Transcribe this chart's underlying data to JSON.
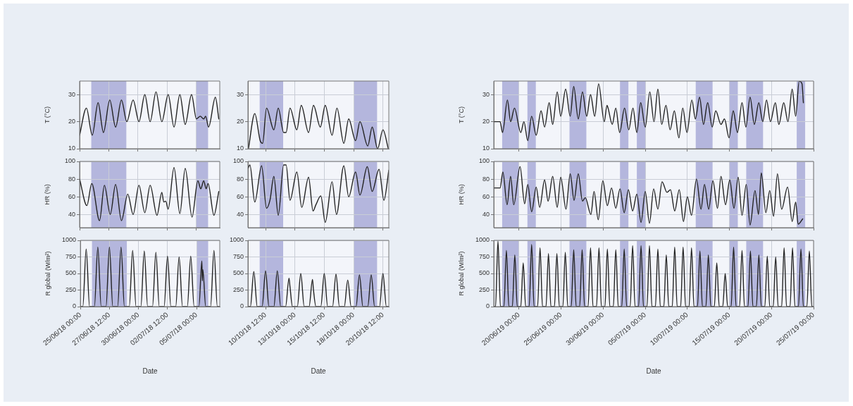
{
  "chart_data": [
    {
      "type": "line",
      "ylabel": "T (°C)",
      "color": "#222222",
      "marker": "none",
      "grid": true,
      "tick_labels": "y",
      "x": [
        "--06-25T00:00",
        "--06-25T14:00",
        "--06-26T02:00",
        "--06-26T14:00",
        "--06-27T01:00",
        "--06-27T14:00",
        "--06-28T02:00",
        "--06-28T14:00",
        "--06-29T01:00",
        "--06-29T14:00",
        "--06-30T02:00",
        "--06-30T14:00",
        "--07-01T01:00",
        "--07-01T13:00",
        "--07-02T01:00",
        "--07-02T14:00",
        "--07-03T02:00",
        "--07-03T14:00",
        "--07-04T01:00",
        "--07-04T14:00",
        "--07-05T00:00",
        "--07-05T08:00",
        "--07-05T15:00",
        "--07-05T19:00",
        "--07-06T01:00",
        "--07-06T15:00",
        "--07-06T22:00"
      ],
      "values": [
        15,
        25,
        15,
        27,
        16,
        28,
        18,
        28,
        20,
        28,
        20,
        30,
        20,
        31,
        20,
        30,
        18,
        30,
        19,
        30,
        21,
        22,
        21,
        22,
        18,
        29,
        21
      ],
      "xlim": [
        "--06-25T00:00",
        "--07-07T00:00"
      ],
      "xticks": [
        {
          "value": "--06-25T00:00",
          "label": null
        },
        {
          "value": "--06-27T12:00",
          "label": null
        },
        {
          "value": "--06-30T00:00",
          "label": null
        },
        {
          "value": "--07-02T12:00",
          "label": null
        },
        {
          "value": "--07-05T00:00",
          "label": null
        }
      ],
      "ylim": [
        10,
        35
      ],
      "yticks": [
        10,
        20,
        30
      ],
      "bands": [
        {
          "axis": "x",
          "from": "--06-26T00:00",
          "to": "--06-29T00:00",
          "color": "#b4b6dd"
        },
        {
          "axis": "x",
          "from": "--07-05T00:00",
          "to": "--07-06T00:00",
          "color": "#b4b6dd"
        }
      ]
    },
    {
      "type": "line",
      "color": "#222222",
      "marker": "none",
      "grid": true,
      "tick_labels": "y",
      "x": [
        "--10-09T01:00",
        "--10-09T14:00",
        "--10-10T01:00",
        "--10-10T06:00",
        "--10-10T14:00",
        "--10-11T05:00",
        "--10-11T14:00",
        "--10-12T01:00",
        "--10-12T06:00",
        "--10-12T14:00",
        "--10-13T04:00",
        "--10-13T13:00",
        "--10-14T04:00",
        "--10-14T14:00",
        "--10-15T04:00",
        "--10-15T14:00",
        "--10-16T04:00",
        "--10-16T14:00",
        "--10-17T04:00",
        "--10-17T14:00",
        "--10-18T04:00",
        "--10-18T13:00",
        "--10-19T05:00",
        "--10-19T14:00",
        "--10-20T01:00",
        "--10-20T12:00",
        "--10-20T23:00"
      ],
      "values": [
        10,
        23,
        13,
        12,
        25,
        17,
        25,
        16,
        16,
        25,
        17,
        26,
        16,
        26,
        18,
        26,
        15,
        25,
        12,
        21,
        13,
        20,
        11,
        18,
        10,
        17,
        10
      ],
      "xlim": [
        "--10-09T00:00",
        "--10-21T00:00"
      ],
      "xticks": [
        {
          "value": "--10-10T12:00",
          "label": null
        },
        {
          "value": "--10-13T00:00",
          "label": null
        },
        {
          "value": "--10-15T12:00",
          "label": null
        },
        {
          "value": "--10-18T00:00",
          "label": null
        },
        {
          "value": "--10-20T12:00",
          "label": null
        }
      ],
      "ylim": [
        10,
        35
      ],
      "yticks": [
        10,
        20,
        30
      ],
      "bands": [
        {
          "axis": "x",
          "from": "--10-10T00:00",
          "to": "--10-12T00:00",
          "color": "#b4b6dd"
        },
        {
          "axis": "x",
          "from": "--10-18T00:00",
          "to": "--10-20T00:00",
          "color": "#b4b6dd"
        }
      ]
    },
    {
      "type": "line",
      "ylabel": "T (°C)",
      "color": "#222222",
      "marker": "none",
      "grid": true,
      "tick_labels": "y",
      "x": [
        "--06-17T00:00",
        "--06-17T18:00",
        "--06-18T01:00",
        "--06-18T15:00",
        "--06-19T00:00",
        "--06-19T11:00",
        "--06-20T05:00",
        "--06-20T14:00",
        "--06-21T01:00",
        "--06-21T12:00",
        "--06-22T01:00",
        "--06-22T15:00",
        "--06-23T01:00",
        "--06-23T14:00",
        "--06-24T00:00",
        "--06-24T13:00",
        "--06-24T23:00",
        "--06-25T13:00",
        "--06-26T02:00",
        "--06-26T12:00",
        "--06-27T01:00",
        "--06-27T13:00",
        "--06-28T01:00",
        "--06-28T12:00",
        "--06-29T00:00",
        "--06-29T11:00",
        "--06-30T03:00",
        "--06-30T11:00",
        "--06-30T14:00",
        "--07-01T02:00",
        "--07-01T12:00",
        "--07-01T23:00",
        "--07-02T13:00",
        "--07-03T01:00",
        "--07-03T13:00",
        "--07-04T00:00",
        "--07-04T11:00",
        "--07-05T00:00",
        "--07-05T13:00",
        "--07-06T01:00",
        "--07-06T12:00",
        "--07-06T23:00",
        "--07-07T11:00",
        "--07-07T23:00",
        "--07-08T11:00",
        "--07-09T00:00",
        "--07-09T11:00",
        "--07-09T23:00",
        "--07-10T13:00",
        "--07-10T23:00",
        "--07-11T11:00",
        "--07-11T22:00",
        "--07-12T10:00",
        "--07-12T23:00",
        "--07-13T09:00",
        "--07-14T00:00",
        "--07-14T10:00",
        "--07-14T23:00",
        "--07-15T11:00",
        "--07-15T23:00",
        "--07-16T12:00",
        "--07-16T23:00",
        "--07-17T11:00",
        "--07-17T23:00",
        "--07-18T12:00",
        "--07-18T23:00",
        "--07-19T10:00",
        "--07-19T21:00",
        "--07-20T11:00",
        "--07-20T21:00",
        "--07-21T11:00",
        "--07-21T23:00",
        "--07-22T11:00",
        "--07-22T21:00",
        "--07-23T07:00",
        "--07-23T15:00",
        "--07-23T19:00"
      ],
      "values": [
        20,
        20,
        16,
        28,
        20,
        25,
        16,
        20,
        13,
        22,
        15,
        24,
        18,
        27,
        19,
        31,
        22,
        32,
        22,
        33,
        21,
        31,
        22,
        30,
        22,
        34,
        20,
        26,
        25,
        19,
        25,
        16,
        25,
        17,
        25,
        16,
        27,
        18,
        31,
        20,
        32,
        19,
        26,
        17,
        24,
        14,
        25,
        16,
        28,
        21,
        29,
        19,
        27,
        18,
        24,
        19,
        21,
        14,
        24,
        16,
        27,
        18,
        29,
        19,
        27,
        20,
        28,
        20,
        27,
        19,
        27,
        20,
        32,
        22,
        35,
        34,
        27
      ],
      "xlim": [
        "--06-17T00:00",
        "--07-25T00:00"
      ],
      "xticks": [
        {
          "value": "--06-20T00:00",
          "label": null
        },
        {
          "value": "--06-25T00:00",
          "label": null
        },
        {
          "value": "--06-30T00:00",
          "label": null
        },
        {
          "value": "--07-05T00:00",
          "label": null
        },
        {
          "value": "--07-10T00:00",
          "label": null
        },
        {
          "value": "--07-15T00:00",
          "label": null
        },
        {
          "value": "--07-20T00:00",
          "label": null
        },
        {
          "value": "--07-25T00:00",
          "label": null
        }
      ],
      "ylim": [
        10,
        35
      ],
      "yticks": [
        10,
        20,
        30
      ],
      "bands": [
        {
          "axis": "x",
          "from": "--06-18T00:00",
          "to": "--06-20T00:00",
          "color": "#b4b6dd"
        },
        {
          "axis": "x",
          "from": "--06-21T00:00",
          "to": "--06-22T00:00",
          "color": "#b4b6dd"
        },
        {
          "axis": "x",
          "from": "--06-26T00:00",
          "to": "--06-28T00:00",
          "color": "#b4b6dd"
        },
        {
          "axis": "x",
          "from": "--07-02T00:00",
          "to": "--07-03T00:00",
          "color": "#b4b6dd"
        },
        {
          "axis": "x",
          "from": "--07-04T00:00",
          "to": "--07-05T00:00",
          "color": "#b4b6dd"
        },
        {
          "axis": "x",
          "from": "--07-11T00:00",
          "to": "--07-13T00:00",
          "color": "#b4b6dd"
        },
        {
          "axis": "x",
          "from": "--07-15T00:00",
          "to": "--07-16T00:00",
          "color": "#b4b6dd"
        },
        {
          "axis": "x",
          "from": "--07-17T00:00",
          "to": "--07-19T00:00",
          "color": "#b4b6dd"
        },
        {
          "axis": "x",
          "from": "--07-23T00:00",
          "to": "--07-24T00:00",
          "color": "#b4b6dd"
        }
      ]
    },
    {
      "type": "line",
      "ylabel": "HR (%)",
      "color": "#222222",
      "marker": "none",
      "grid": true,
      "tick_labels": "y",
      "x": [
        "--06-25T00:00",
        "--06-25T15:00",
        "--06-26T01:00",
        "--06-26T17:00",
        "--06-27T03:00",
        "--06-27T15:00",
        "--06-28T02:00",
        "--06-28T14:00",
        "--06-29T03:00",
        "--06-29T14:00",
        "--06-30T02:00",
        "--06-30T14:00",
        "--07-01T01:00",
        "--07-01T15:00",
        "--07-02T01:00",
        "--07-02T05:00",
        "--07-02T09:00",
        "--07-02T14:00",
        "--07-03T02:00",
        "--07-03T14:00",
        "--07-04T01:00",
        "--07-04T15:00",
        "--07-05T03:00",
        "--07-05T09:00",
        "--07-05T15:00",
        "--07-05T20:00",
        "--07-06T00:00",
        "--07-06T12:00",
        "--07-06T22:00"
      ],
      "values": [
        80,
        50,
        75,
        33,
        73,
        40,
        74,
        33,
        63,
        40,
        73,
        42,
        73,
        39,
        65,
        54,
        55,
        46,
        93,
        41,
        92,
        37,
        78,
        69,
        78,
        69,
        75,
        39,
        66
      ],
      "xlim": [
        "--06-25T00:00",
        "--07-07T00:00"
      ],
      "xticks": [
        {
          "value": "--06-25T00:00",
          "label": null
        },
        {
          "value": "--06-27T12:00",
          "label": null
        },
        {
          "value": "--06-30T00:00",
          "label": null
        },
        {
          "value": "--07-02T12:00",
          "label": null
        },
        {
          "value": "--07-05T00:00",
          "label": null
        }
      ],
      "ylim": [
        25,
        100
      ],
      "yticks": [
        40,
        60,
        80,
        100
      ],
      "bands": [
        {
          "axis": "x",
          "from": "--06-26T00:00",
          "to": "--06-29T00:00",
          "color": "#b4b6dd"
        },
        {
          "axis": "x",
          "from": "--07-05T00:00",
          "to": "--07-06T00:00",
          "color": "#b4b6dd"
        }
      ]
    },
    {
      "type": "line",
      "color": "#222222",
      "marker": "none",
      "grid": true,
      "tick_labels": "y",
      "x": [
        "--10-09T00:00",
        "--10-09T04:00",
        "--10-09T14:00",
        "--10-10T04:00",
        "--10-10T14:00",
        "--10-10T21:00",
        "--10-11T05:00",
        "--10-11T14:00",
        "--10-12T01:00",
        "--10-12T06:00",
        "--10-12T14:00",
        "--10-13T04:00",
        "--10-13T14:00",
        "--10-14T04:00",
        "--10-14T13:00",
        "--10-14T19:00",
        "--10-15T05:00",
        "--10-15T14:00",
        "--10-16T04:00",
        "--10-16T13:00",
        "--10-17T04:00",
        "--10-17T14:00",
        "--10-18T04:00",
        "--10-18T13:00",
        "--10-19T04:00",
        "--10-19T14:00",
        "--10-20T04:00",
        "--10-20T14:00",
        "--10-21T00:00"
      ],
      "values": [
        92,
        96,
        54,
        95,
        47,
        56,
        83,
        39,
        96,
        96,
        56,
        88,
        48,
        82,
        44,
        51,
        61,
        31,
        77,
        40,
        95,
        60,
        88,
        62,
        94,
        66,
        91,
        56,
        90
      ],
      "xlim": [
        "--10-09T00:00",
        "--10-21T00:00"
      ],
      "xticks": [
        {
          "value": "--10-10T12:00",
          "label": null
        },
        {
          "value": "--10-13T00:00",
          "label": null
        },
        {
          "value": "--10-15T12:00",
          "label": null
        },
        {
          "value": "--10-18T00:00",
          "label": null
        },
        {
          "value": "--10-20T12:00",
          "label": null
        }
      ],
      "ylim": [
        25,
        100
      ],
      "yticks": [
        40,
        60,
        80,
        100
      ],
      "bands": [
        {
          "axis": "x",
          "from": "--10-10T00:00",
          "to": "--10-12T00:00",
          "color": "#b4b6dd"
        },
        {
          "axis": "x",
          "from": "--10-18T00:00",
          "to": "--10-20T00:00",
          "color": "#b4b6dd"
        }
      ]
    },
    {
      "type": "line",
      "ylabel": "HR (%)",
      "color": "#222222",
      "marker": "none",
      "grid": true,
      "tick_labels": "y",
      "x": [
        "--06-17T00:00",
        "--06-17T18:00",
        "--06-18T02:00",
        "--06-18T14:00",
        "--06-19T00:00",
        "--06-19T09:00",
        "--06-20T03:00",
        "--06-20T16:00",
        "--06-21T01:00",
        "--06-21T12:00",
        "--06-22T01:00",
        "--06-22T11:00",
        "--06-23T01:00",
        "--06-23T11:00",
        "--06-24T00:00",
        "--06-24T13:00",
        "--06-24T23:00",
        "--06-25T14:00",
        "--06-26T02:00",
        "--06-26T13:00",
        "--06-27T01:00",
        "--06-27T13:00",
        "--06-27T21:00",
        "--06-28T13:00",
        "--06-28T22:00",
        "--06-29T10:00",
        "--06-29T23:00",
        "--06-30T12:00",
        "--07-01T00:00",
        "--07-01T12:00",
        "--07-02T00:00",
        "--07-02T12:00",
        "--07-03T00:00",
        "--07-03T12:00",
        "--07-04T00:00",
        "--07-04T12:00",
        "--07-05T00:00",
        "--07-05T12:00",
        "--07-06T00:00",
        "--07-06T12:00",
        "--07-07T00:00",
        "--07-07T14:00",
        "--07-08T00:00",
        "--07-08T12:00",
        "--07-09T01:00",
        "--07-09T13:00",
        "--07-10T00:00",
        "--07-10T12:00",
        "--07-11T02:00",
        "--07-11T15:00",
        "--07-12T01:00",
        "--07-12T13:00",
        "--07-13T01:00",
        "--07-13T14:00",
        "--07-14T00:00",
        "--07-14T13:00",
        "--07-15T01:00",
        "--07-15T13:00",
        "--07-16T01:00",
        "--07-16T12:00",
        "--07-17T00:00",
        "--07-17T11:00",
        "--07-18T01:00",
        "--07-18T11:00",
        "--07-18T19:00",
        "--07-19T08:00",
        "--07-19T19:00",
        "--07-20T06:00",
        "--07-20T17:00",
        "--07-21T05:00",
        "--07-21T22:00",
        "--07-22T11:00",
        "--07-22T21:00",
        "--07-23T04:00",
        "--07-23T17:00"
      ],
      "values": [
        70,
        70,
        88,
        51,
        83,
        51,
        94,
        52,
        74,
        43,
        71,
        48,
        79,
        55,
        83,
        48,
        82,
        46,
        86,
        56,
        86,
        55,
        59,
        40,
        66,
        34,
        78,
        50,
        70,
        47,
        69,
        42,
        68,
        44,
        63,
        31,
        66,
        30,
        69,
        46,
        77,
        65,
        68,
        44,
        68,
        32,
        60,
        39,
        80,
        46,
        74,
        46,
        78,
        47,
        83,
        51,
        79,
        47,
        82,
        39,
        74,
        28,
        67,
        40,
        87,
        42,
        67,
        38,
        86,
        46,
        71,
        32,
        54,
        29,
        35
      ],
      "xlim": [
        "--06-17T00:00",
        "--07-25T00:00"
      ],
      "xticks": [
        {
          "value": "--06-20T00:00",
          "label": null
        },
        {
          "value": "--06-25T00:00",
          "label": null
        },
        {
          "value": "--06-30T00:00",
          "label": null
        },
        {
          "value": "--07-05T00:00",
          "label": null
        },
        {
          "value": "--07-10T00:00",
          "label": null
        },
        {
          "value": "--07-15T00:00",
          "label": null
        },
        {
          "value": "--07-20T00:00",
          "label": null
        },
        {
          "value": "--07-25T00:00",
          "label": null
        }
      ],
      "ylim": [
        25,
        100
      ],
      "yticks": [
        40,
        60,
        80,
        100
      ],
      "bands": [
        {
          "axis": "x",
          "from": "--06-18T00:00",
          "to": "--06-20T00:00",
          "color": "#b4b6dd"
        },
        {
          "axis": "x",
          "from": "--06-21T00:00",
          "to": "--06-22T00:00",
          "color": "#b4b6dd"
        },
        {
          "axis": "x",
          "from": "--06-26T00:00",
          "to": "--06-28T00:00",
          "color": "#b4b6dd"
        },
        {
          "axis": "x",
          "from": "--07-02T00:00",
          "to": "--07-03T00:00",
          "color": "#b4b6dd"
        },
        {
          "axis": "x",
          "from": "--07-04T00:00",
          "to": "--07-05T00:00",
          "color": "#b4b6dd"
        },
        {
          "axis": "x",
          "from": "--07-11T00:00",
          "to": "--07-13T00:00",
          "color": "#b4b6dd"
        },
        {
          "axis": "x",
          "from": "--07-15T00:00",
          "to": "--07-16T00:00",
          "color": "#b4b6dd"
        },
        {
          "axis": "x",
          "from": "--07-17T00:00",
          "to": "--07-19T00:00",
          "color": "#b4b6dd"
        },
        {
          "axis": "x",
          "from": "--07-23T00:00",
          "to": "--07-24T00:00",
          "color": "#b4b6dd"
        }
      ]
    },
    {
      "type": "line",
      "ylabel": "R global (W/m²)",
      "xlabel": "Date",
      "color": "#222222",
      "marker": "none",
      "grid": true,
      "x": [
        "--06-25T00:00",
        "--06-25T05:00",
        "--06-25T12:00",
        "--06-25T19:00",
        "--06-26T05:00",
        "--06-26T12:00",
        "--06-26T19:00",
        "--06-27T05:00",
        "--06-27T12:00",
        "--06-27T19:00",
        "--06-28T05:00",
        "--06-28T12:00",
        "--06-28T19:00",
        "--06-29T05:00",
        "--06-29T12:00",
        "--06-29T19:00",
        "--06-30T05:00",
        "--06-30T12:00",
        "--06-30T19:00",
        "--07-01T05:00",
        "--07-01T12:00",
        "--07-01T19:00",
        "--07-02T05:00",
        "--07-02T12:00",
        "--07-02T19:00",
        "--07-03T05:00",
        "--07-03T12:00",
        "--07-03T19:00",
        "--07-04T05:00",
        "--07-04T12:00",
        "--07-04T19:00",
        "--07-05T05:00",
        "--07-05T11:00",
        "--07-05T12:00",
        "--07-05T13:00",
        "--07-05T19:00",
        "--07-06T05:00",
        "--07-06T12:00",
        "--07-06T19:00",
        "--07-07T00:00"
      ],
      "values": [
        0,
        0,
        870,
        0,
        0,
        900,
        0,
        0,
        900,
        0,
        0,
        900,
        0,
        0,
        850,
        0,
        0,
        840,
        0,
        0,
        820,
        0,
        0,
        760,
        0,
        0,
        750,
        0,
        0,
        760,
        0,
        0,
        690,
        390,
        560,
        0,
        0,
        850,
        0,
        0
      ],
      "xlim": [
        "--06-25T00:00",
        "--07-07T00:00"
      ],
      "xticks": [
        {
          "value": "--06-25T00:00",
          "label": "25/06/18 00:00"
        },
        {
          "value": "--06-27T12:00",
          "label": "27/06/18 12:00"
        },
        {
          "value": "--06-30T00:00",
          "label": "30/06/18 00:00"
        },
        {
          "value": "--07-02T12:00",
          "label": "02/07/18 12:00"
        },
        {
          "value": "--07-05T00:00",
          "label": "05/07/18 00:00"
        }
      ],
      "ylim": [
        0,
        1000
      ],
      "yticks": [
        0,
        250,
        500,
        750,
        1000
      ],
      "bands": [
        {
          "axis": "x",
          "from": "--06-26T00:00",
          "to": "--06-29T00:00",
          "color": "#b4b6dd"
        },
        {
          "axis": "x",
          "from": "--07-05T00:00",
          "to": "--07-06T00:00",
          "color": "#b4b6dd"
        }
      ]
    },
    {
      "type": "line",
      "xlabel": "Date",
      "color": "#222222",
      "marker": "none",
      "grid": true,
      "x": [
        "--10-09T00:00",
        "--10-09T05:00",
        "--10-09T12:00",
        "--10-09T19:00",
        "--10-10T05:00",
        "--10-10T12:00",
        "--10-10T19:00",
        "--10-11T05:00",
        "--10-11T12:00",
        "--10-11T19:00",
        "--10-12T05:00",
        "--10-12T12:00",
        "--10-12T14:00",
        "--10-12T19:00",
        "--10-13T05:00",
        "--10-13T12:00",
        "--10-13T19:00",
        "--10-14T05:00",
        "--10-14T12:00",
        "--10-14T14:00",
        "--10-14T19:00",
        "--10-15T05:00",
        "--10-15T12:00",
        "--10-15T19:00",
        "--10-16T05:00",
        "--10-16T12:00",
        "--10-16T19:00",
        "--10-17T05:00",
        "--10-17T12:00",
        "--10-17T19:00",
        "--10-18T05:00",
        "--10-18T12:00",
        "--10-18T19:00",
        "--10-19T05:00",
        "--10-19T12:00",
        "--10-19T19:00",
        "--10-20T05:00",
        "--10-20T12:00",
        "--10-20T19:00",
        "--10-21T00:00"
      ],
      "values": [
        0,
        0,
        530,
        0,
        0,
        540,
        0,
        0,
        540,
        0,
        0,
        430,
        300,
        0,
        0,
        500,
        0,
        0,
        410,
        250,
        0,
        0,
        500,
        0,
        0,
        490,
        0,
        0,
        400,
        0,
        0,
        480,
        0,
        0,
        480,
        0,
        0,
        500,
        0,
        0
      ],
      "xlim": [
        "--10-09T00:00",
        "--10-21T00:00"
      ],
      "xticks": [
        {
          "value": "--10-10T12:00",
          "label": "10/10/18 12:00"
        },
        {
          "value": "--10-13T00:00",
          "label": "13/10/18 00:00"
        },
        {
          "value": "--10-15T12:00",
          "label": "15/10/18 12:00"
        },
        {
          "value": "--10-18T00:00",
          "label": "18/10/18 00:00"
        },
        {
          "value": "--10-20T12:00",
          "label": "20/10/18 12:00"
        }
      ],
      "ylim": [
        0,
        1000
      ],
      "yticks": [
        0,
        250,
        500,
        750,
        1000
      ],
      "bands": [
        {
          "axis": "x",
          "from": "--10-10T00:00",
          "to": "--10-12T00:00",
          "color": "#b4b6dd"
        },
        {
          "axis": "x",
          "from": "--10-18T00:00",
          "to": "--10-20T00:00",
          "color": "#b4b6dd"
        }
      ]
    },
    {
      "type": "line",
      "ylabel": "R global (W/m²)",
      "xlabel": "Date",
      "color": "#222222",
      "marker": "none",
      "grid": true,
      "x": [
        "--06-17T00:00",
        "--06-17T05:00",
        "--06-17T12:00",
        "--06-17T19:00",
        "--06-18T05:00",
        "--06-18T12:00",
        "--06-18T19:00",
        "--06-19T05:00",
        "--06-19T12:00",
        "--06-19T19:00",
        "--06-20T05:00",
        "--06-20T12:00",
        "--06-20T19:00",
        "--06-21T05:00",
        "--06-21T12:00",
        "--06-21T19:00",
        "--06-22T05:00",
        "--06-22T12:00",
        "--06-22T19:00",
        "--06-23T05:00",
        "--06-23T12:00",
        "--06-23T19:00",
        "--06-24T05:00",
        "--06-24T12:00",
        "--06-24T19:00",
        "--06-25T05:00",
        "--06-25T12:00",
        "--06-25T19:00",
        "--06-26T05:00",
        "--06-26T12:00",
        "--06-26T19:00",
        "--06-27T05:00",
        "--06-27T12:00",
        "--06-27T19:00",
        "--06-28T05:00",
        "--06-28T12:00",
        "--06-28T19:00",
        "--06-29T05:00",
        "--06-29T12:00",
        "--06-29T19:00",
        "--06-30T05:00",
        "--06-30T12:00",
        "--06-30T19:00",
        "--07-01T05:00",
        "--07-01T12:00",
        "--07-01T19:00",
        "--07-02T05:00",
        "--07-02T12:00",
        "--07-02T19:00",
        "--07-03T05:00",
        "--07-03T12:00",
        "--07-03T19:00",
        "--07-04T05:00",
        "--07-04T12:00",
        "--07-04T19:00",
        "--07-05T05:00",
        "--07-05T12:00",
        "--07-05T19:00",
        "--07-06T05:00",
        "--07-06T12:00",
        "--07-06T19:00",
        "--07-07T05:00",
        "--07-07T12:00",
        "--07-07T19:00",
        "--07-08T05:00",
        "--07-08T12:00",
        "--07-08T19:00",
        "--07-09T05:00",
        "--07-09T12:00",
        "--07-09T19:00",
        "--07-10T05:00",
        "--07-10T12:00",
        "--07-10T19:00",
        "--07-11T05:00",
        "--07-11T12:00",
        "--07-11T19:00",
        "--07-12T05:00",
        "--07-12T12:00",
        "--07-12T19:00",
        "--07-13T05:00",
        "--07-13T12:00",
        "--07-13T19:00",
        "--07-14T05:00",
        "--07-14T12:00",
        "--07-14T19:00",
        "--07-15T05:00",
        "--07-15T12:00",
        "--07-15T19:00",
        "--07-16T05:00",
        "--07-16T12:00",
        "--07-16T19:00",
        "--07-17T05:00",
        "--07-17T12:00",
        "--07-17T19:00",
        "--07-18T05:00",
        "--07-18T12:00",
        "--07-18T19:00",
        "--07-19T05:00",
        "--07-19T12:00",
        "--07-19T19:00",
        "--07-20T05:00",
        "--07-20T12:00",
        "--07-20T19:00",
        "--07-21T05:00",
        "--07-21T12:00",
        "--07-21T19:00",
        "--07-22T05:00",
        "--07-22T12:00",
        "--07-22T19:00",
        "--07-23T05:00",
        "--07-23T12:00",
        "--07-23T19:00",
        "--07-24T05:00",
        "--07-24T12:00",
        "--07-24T19:00",
        "--07-25T00:00"
      ],
      "values": [
        0,
        0,
        990,
        0,
        0,
        850,
        0,
        0,
        780,
        0,
        0,
        660,
        0,
        0,
        940,
        0,
        0,
        890,
        0,
        0,
        800,
        0,
        0,
        800,
        0,
        0,
        820,
        0,
        0,
        860,
        0,
        0,
        860,
        0,
        0,
        890,
        0,
        0,
        890,
        0,
        0,
        870,
        0,
        0,
        860,
        0,
        0,
        870,
        0,
        0,
        920,
        0,
        0,
        920,
        0,
        0,
        920,
        0,
        0,
        870,
        0,
        0,
        780,
        0,
        0,
        900,
        0,
        0,
        900,
        0,
        0,
        890,
        0,
        0,
        840,
        0,
        0,
        780,
        0,
        0,
        660,
        0,
        0,
        500,
        0,
        0,
        900,
        0,
        0,
        850,
        0,
        0,
        840,
        0,
        0,
        780,
        0,
        0,
        760,
        0,
        0,
        750,
        0,
        0,
        890,
        0,
        0,
        890,
        0,
        0,
        870,
        0,
        0,
        840,
        0,
        0
      ],
      "xlim": [
        "--06-17T00:00",
        "--07-25T00:00"
      ],
      "xticks": [
        {
          "value": "--06-20T00:00",
          "label": "20/06/19 00:00"
        },
        {
          "value": "--06-25T00:00",
          "label": "25/06/19 00:00"
        },
        {
          "value": "--06-30T00:00",
          "label": "30/06/19 00:00"
        },
        {
          "value": "--07-05T00:00",
          "label": "05/07/19 00:00"
        },
        {
          "value": "--07-10T00:00",
          "label": "10/07/19 00:00"
        },
        {
          "value": "--07-15T00:00",
          "label": "15/07/19 00:00"
        },
        {
          "value": "--07-20T00:00",
          "label": "20/07/19 00:00"
        },
        {
          "value": "--07-25T00:00",
          "label": "25/07/19 00:00"
        }
      ],
      "ylim": [
        0,
        1000
      ],
      "yticks": [
        0,
        250,
        500,
        750,
        1000
      ],
      "bands": [
        {
          "axis": "x",
          "from": "--06-18T00:00",
          "to": "--06-20T00:00",
          "color": "#b4b6dd"
        },
        {
          "axis": "x",
          "from": "--06-21T00:00",
          "to": "--06-22T00:00",
          "color": "#b4b6dd"
        },
        {
          "axis": "x",
          "from": "--06-26T00:00",
          "to": "--06-28T00:00",
          "color": "#b4b6dd"
        },
        {
          "axis": "x",
          "from": "--07-02T00:00",
          "to": "--07-03T00:00",
          "color": "#b4b6dd"
        },
        {
          "axis": "x",
          "from": "--07-04T00:00",
          "to": "--07-05T00:00",
          "color": "#b4b6dd"
        },
        {
          "axis": "x",
          "from": "--07-11T00:00",
          "to": "--07-13T00:00",
          "color": "#b4b6dd"
        },
        {
          "axis": "x",
          "from": "--07-15T00:00",
          "to": "--07-16T00:00",
          "color": "#b4b6dd"
        },
        {
          "axis": "x",
          "from": "--07-17T00:00",
          "to": "--07-19T00:00",
          "color": "#b4b6dd"
        },
        {
          "axis": "x",
          "from": "--07-23T00:00",
          "to": "--07-24T00:00",
          "color": "#b4b6dd"
        }
      ]
    }
  ]
}
